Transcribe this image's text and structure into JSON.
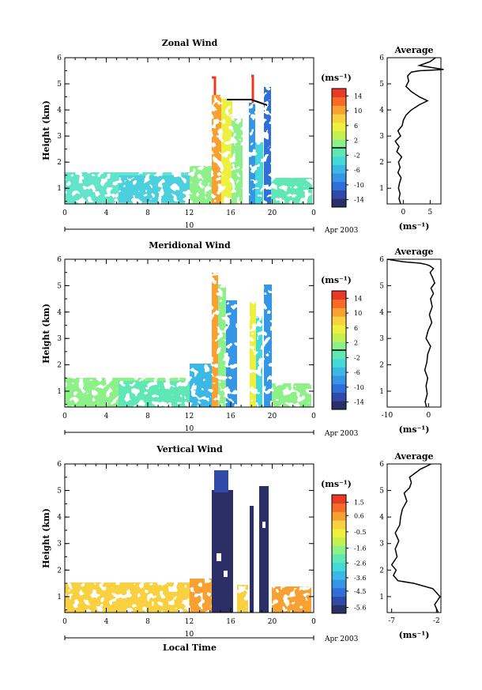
{
  "bottom_label": "Local Time",
  "colorscale": [
    "#2b2f66",
    "#2f4aa8",
    "#2f6fd8",
    "#3596e6",
    "#3bb8e6",
    "#45d8d8",
    "#5ee8b6",
    "#8ef088",
    "#c4f050",
    "#eef040",
    "#f8d040",
    "#f8a030",
    "#f86a28",
    "#e83a24"
  ],
  "chart_data": [
    {
      "type": "heatmap",
      "title": "Zonal Wind",
      "ylabel": "Height (km)",
      "x_ticks": [
        "0",
        "4",
        "8",
        "12",
        "16",
        "20",
        "0"
      ],
      "y_ticks": [
        "1",
        "2",
        "3",
        "4",
        "5",
        "6"
      ],
      "xlim": [
        0,
        24
      ],
      "ylim": [
        0.4,
        6
      ],
      "date_ticks": [
        "10"
      ],
      "date_label": "Apr 2003",
      "colorbar_unit": "(ms⁻¹)",
      "colorbar_ticks": [
        "14",
        "10",
        "6",
        "2",
        "-2",
        "-6",
        "-10",
        "-14"
      ],
      "colorbar_range": [
        -16,
        16
      ],
      "colorbar_zero_line": 0,
      "profile": {
        "title": "Average",
        "xlabel": "(ms⁻¹)",
        "x_ticks": [
          "0",
          "5"
        ],
        "y_ticks": [
          "1",
          "2",
          "3",
          "4",
          "5",
          "6"
        ],
        "xlim": [
          -3,
          7
        ],
        "ylim": [
          0.4,
          6
        ],
        "x": [
          -0.5,
          -0.8,
          -0.6,
          -0.9,
          -0.7,
          -0.4,
          -1,
          -0.6,
          -0.9,
          -0.3,
          -1.2,
          -0.8,
          -1.5,
          -0.5,
          -1,
          -0.2,
          0,
          0.5,
          1.5,
          3,
          4.5,
          3,
          1.5,
          0.5,
          1,
          0.8,
          1.5,
          3,
          5,
          7.5,
          6,
          3,
          5,
          6
        ],
        "y": [
          0.4,
          0.6,
          0.8,
          1,
          1.2,
          1.4,
          1.6,
          1.8,
          2,
          2.2,
          2.4,
          2.6,
          2.8,
          3,
          3.2,
          3.4,
          3.6,
          3.8,
          4,
          4.2,
          4.35,
          4.5,
          4.7,
          4.9,
          5.1,
          5.3,
          5.45,
          5.5,
          5.52,
          5.55,
          5.6,
          5.7,
          5.85,
          6
        ]
      }
    },
    {
      "type": "heatmap",
      "title": "Meridional Wind",
      "ylabel": "Height (km)",
      "x_ticks": [
        "0",
        "4",
        "8",
        "12",
        "16",
        "20",
        "0"
      ],
      "y_ticks": [
        "1",
        "2",
        "3",
        "4",
        "5",
        "6"
      ],
      "xlim": [
        0,
        24
      ],
      "ylim": [
        0.4,
        6
      ],
      "date_ticks": [
        "10"
      ],
      "date_label": "Apr 2003",
      "colorbar_unit": "(ms⁻¹)",
      "colorbar_ticks": [
        "14",
        "10",
        "6",
        "2",
        "-2",
        "-6",
        "-10",
        "-14"
      ],
      "colorbar_range": [
        -16,
        16
      ],
      "colorbar_zero_line": 0,
      "profile": {
        "title": "Average",
        "xlabel": "(ms⁻¹)",
        "x_ticks": [
          "-10",
          "0"
        ],
        "y_ticks": [
          "1",
          "2",
          "3",
          "4",
          "5",
          "6"
        ],
        "xlim": [
          -10,
          3
        ],
        "ylim": [
          0.4,
          6
        ],
        "x": [
          -0.5,
          -0.8,
          -0.3,
          -0.6,
          -0.2,
          -0.9,
          -0.4,
          -0.2,
          0.5,
          -0.6,
          -0.1,
          0.8,
          0.2,
          0.9,
          0.5,
          1.2,
          0.6,
          1.5,
          1,
          0.4,
          1.2,
          0.3,
          -0.5,
          -2,
          -6,
          -10
        ],
        "y": [
          0.4,
          0.6,
          0.9,
          1.2,
          1.5,
          1.8,
          2.1,
          2.4,
          2.7,
          3,
          3.3,
          3.6,
          3.9,
          4.2,
          4.5,
          4.7,
          4.9,
          5.1,
          5.3,
          5.5,
          5.65,
          5.75,
          5.8,
          5.85,
          5.9,
          6
        ]
      }
    },
    {
      "type": "heatmap",
      "title": "Vertical Wind",
      "ylabel": "Height (km)",
      "xlabel": "Local Time",
      "x_ticks": [
        "0",
        "4",
        "8",
        "12",
        "16",
        "20",
        "0"
      ],
      "y_ticks": [
        "1",
        "2",
        "3",
        "4",
        "5",
        "6"
      ],
      "xlim": [
        0,
        24
      ],
      "ylim": [
        0.4,
        6
      ],
      "date_ticks": [
        "10"
      ],
      "date_label": "Apr 2003",
      "colorbar_unit": "(ms⁻¹)",
      "colorbar_ticks": [
        "1.5",
        "0.6",
        "-0.5",
        "-1.6",
        "-2.6",
        "-3.6",
        "-4.5",
        "-5.6"
      ],
      "colorbar_range": [
        -6,
        2
      ],
      "colorbar_zero_line": null,
      "profile": {
        "title": "Average",
        "xlabel": "(ms⁻¹)",
        "x_ticks": [
          "-7",
          "-2"
        ],
        "y_ticks": [
          "1",
          "2",
          "3",
          "4",
          "5",
          "6"
        ],
        "xlim": [
          -7.5,
          -1.5
        ],
        "ylim": [
          0.4,
          6
        ],
        "x": [
          -1.8,
          -2.2,
          -1.6,
          -2.4,
          -4.5,
          -6.3,
          -6.8,
          -6.5,
          -7,
          -6.4,
          -6.6,
          -6.2,
          -6.6,
          -6.1,
          -6,
          -5.8,
          -5.3,
          -5.6,
          -5,
          -4.8,
          -5,
          -4.2,
          -3.8,
          -3.2,
          -2.6
        ],
        "y": [
          0.4,
          0.7,
          1,
          1.3,
          1.5,
          1.6,
          1.8,
          2,
          2.2,
          2.5,
          2.8,
          3.1,
          3.4,
          3.7,
          4,
          4.3,
          4.6,
          4.9,
          5.1,
          5.3,
          5.5,
          5.7,
          5.8,
          5.9,
          6
        ]
      }
    }
  ]
}
